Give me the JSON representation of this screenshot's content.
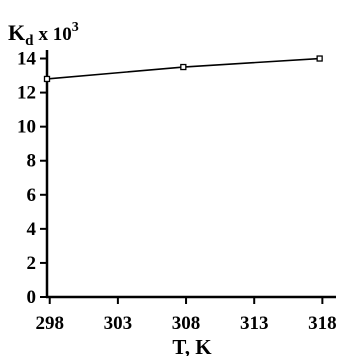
{
  "chart_data": {
    "type": "line",
    "ylabel_parts": {
      "base": "K",
      "sub": "d",
      "times": "x 10",
      "sup": "3"
    },
    "xlabel": "T, K",
    "x": [
      297.8,
      307.8,
      317.8
    ],
    "y": [
      12.8,
      13.5,
      14.0
    ],
    "xlim": [
      297.8,
      319.0
    ],
    "ylim": [
      0,
      14.5
    ],
    "xticks": [
      298,
      303,
      308,
      313,
      318
    ],
    "yticks": [
      0,
      2,
      4,
      6,
      8,
      10,
      12,
      14
    ],
    "marker": "open-square",
    "grid": false,
    "legend": "none",
    "colors": {
      "line": "#000000",
      "axis": "#000000",
      "background": "#ffffff"
    }
  }
}
